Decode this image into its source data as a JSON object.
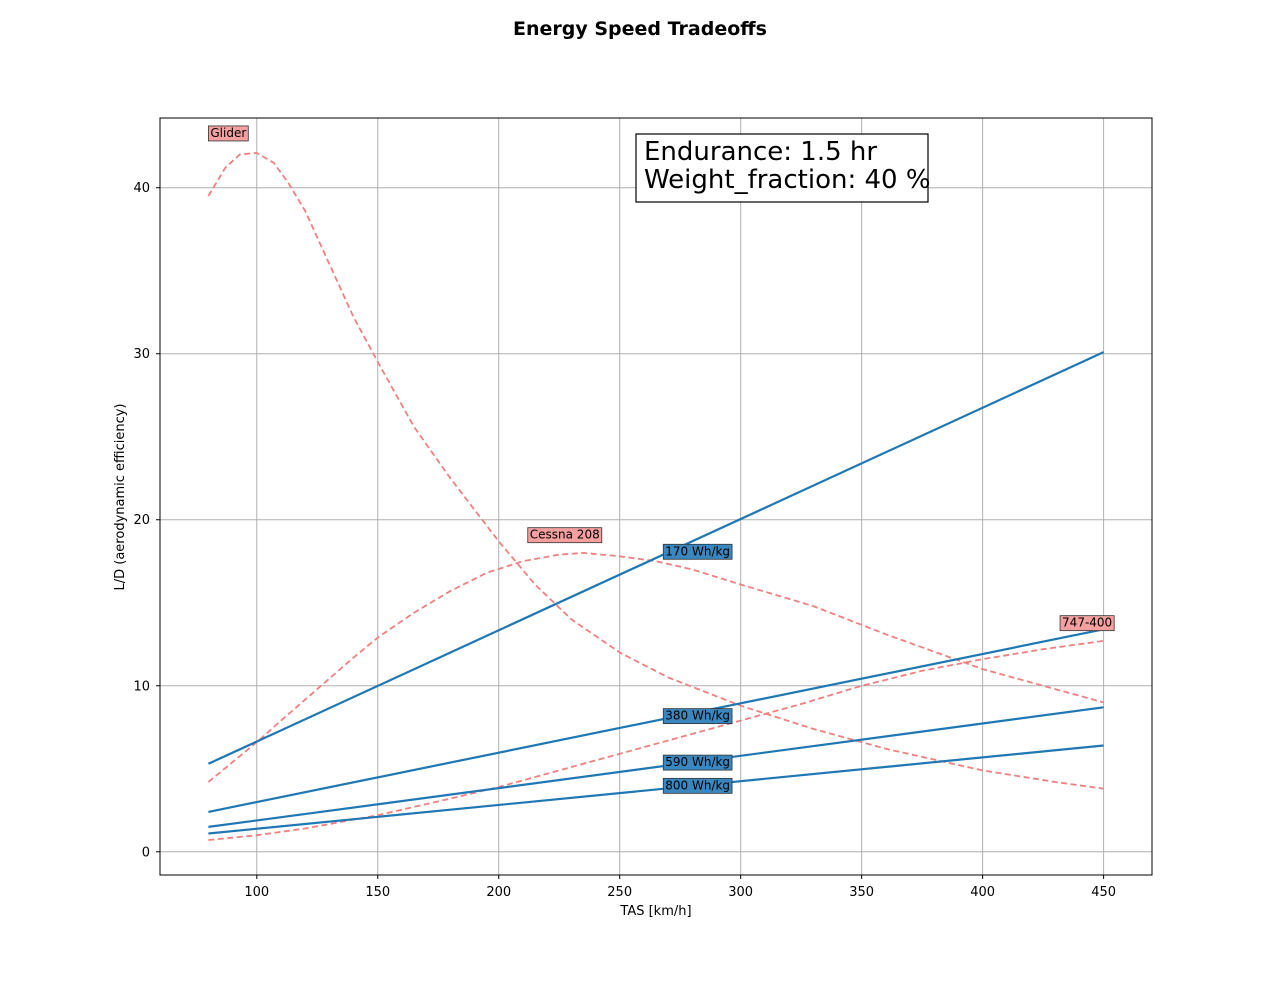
{
  "chart_data": {
    "type": "line",
    "title": "Energy Speed Tradeoffs",
    "xlabel": "TAS [km/h]",
    "ylabel": "L/D (aerodynamic efficiency)",
    "xlim": [
      60,
      470
    ],
    "ylim": [
      -1.4,
      44.2
    ],
    "xticks": [
      100,
      150,
      200,
      250,
      300,
      350,
      400,
      450
    ],
    "yticks": [
      0,
      10,
      20,
      30,
      40
    ],
    "grid": true,
    "annotation": [
      "Endurance: 1.5 hr",
      "Weight_fraction: 40 %"
    ],
    "battery_series": [
      {
        "name": "170 Wh/kg",
        "label_x": 268,
        "label_y": 18.1,
        "x": [
          80,
          450
        ],
        "y": [
          5.3,
          30.1
        ]
      },
      {
        "name": "380 Wh/kg",
        "label_x": 268,
        "label_y": 8.2,
        "x": [
          80,
          450
        ],
        "y": [
          2.4,
          13.4
        ]
      },
      {
        "name": "590 Wh/kg",
        "label_x": 268,
        "label_y": 5.4,
        "x": [
          80,
          450
        ],
        "y": [
          1.5,
          8.7
        ]
      },
      {
        "name": "800 Wh/kg",
        "label_x": 268,
        "label_y": 4.0,
        "x": [
          80,
          450
        ],
        "y": [
          1.1,
          6.4
        ]
      }
    ],
    "aircraft_series": [
      {
        "name": "Glider",
        "label_x": 80,
        "label_y": 43.3,
        "x": [
          80,
          87,
          93,
          100,
          107,
          113,
          120,
          130,
          140,
          150,
          165,
          180,
          200,
          215,
          230,
          250,
          270,
          300,
          330,
          360,
          400,
          430,
          450
        ],
        "y": [
          39.5,
          41.2,
          42.0,
          42.1,
          41.5,
          40.3,
          38.6,
          35.4,
          32.2,
          29.5,
          25.6,
          22.5,
          18.7,
          16.1,
          14.0,
          12.0,
          10.5,
          8.8,
          7.4,
          6.2,
          4.9,
          4.2,
          3.8
        ]
      },
      {
        "name": "Cessna 208",
        "label_x": 212,
        "label_y": 19.1,
        "x": [
          80,
          90,
          100,
          110,
          125,
          140,
          150,
          165,
          180,
          195,
          210,
          225,
          235,
          250,
          265,
          280,
          300,
          330,
          360,
          400,
          430,
          450
        ],
        "y": [
          4.2,
          5.4,
          6.6,
          7.9,
          9.8,
          11.7,
          12.9,
          14.4,
          15.7,
          16.8,
          17.5,
          17.9,
          18.0,
          17.8,
          17.5,
          17.0,
          16.1,
          14.8,
          13.1,
          11.0,
          9.8,
          9.0
        ]
      },
      {
        "name": "747-400",
        "label_x": 432,
        "label_y": 13.8,
        "x": [
          80,
          100,
          120,
          150,
          180,
          200,
          225,
          250,
          275,
          300,
          325,
          350,
          375,
          400,
          425,
          450
        ],
        "y": [
          0.7,
          1.0,
          1.4,
          2.2,
          3.2,
          3.9,
          4.9,
          5.9,
          6.9,
          7.9,
          8.9,
          10.0,
          10.9,
          11.6,
          12.2,
          12.7
        ]
      }
    ],
    "colors": {
      "battery": "#1f77b4",
      "aircraft": "#f08080",
      "battery_label_bg": "#3a87bf",
      "aircraft_label_bg": "#f4a0a0",
      "grid": "#b0b0b0"
    }
  }
}
